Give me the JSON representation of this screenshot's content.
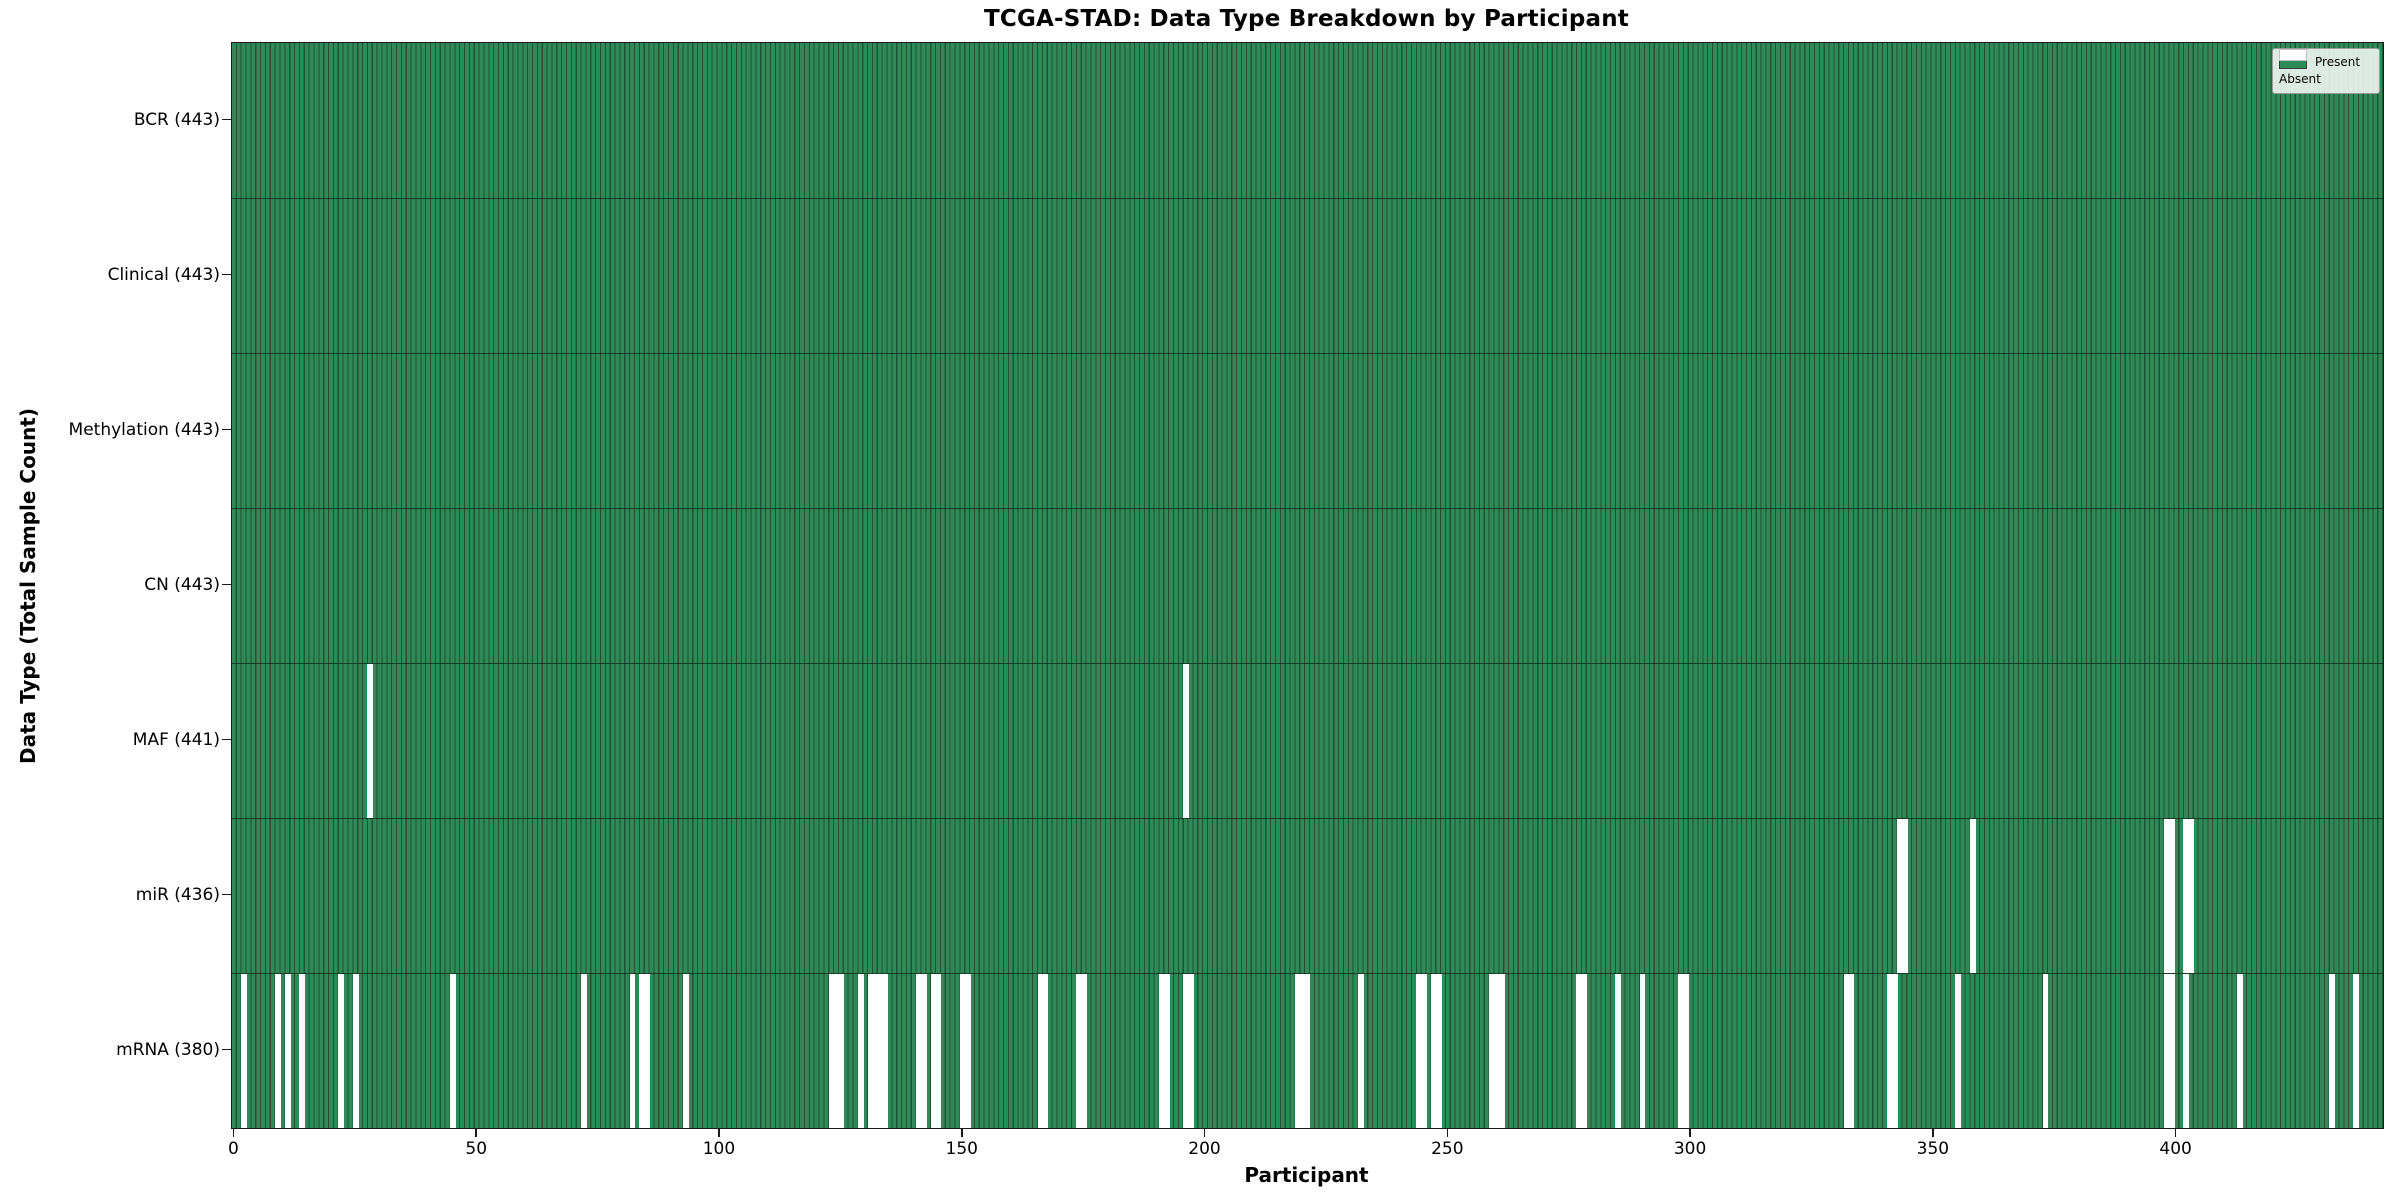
{
  "figure": {
    "title": "TCGA-STAD: Data Type Breakdown by Participant",
    "x_axis_label": "Participant",
    "y_axis_label": "Data Type (Total Sample Count)"
  },
  "legend": {
    "position": "upper-right",
    "items": [
      {
        "label": "Present",
        "color": "#2e8b57"
      },
      {
        "label": "Absent",
        "color": "#ffffff"
      }
    ]
  },
  "chart_data": {
    "type": "heatmap",
    "title": "TCGA-STAD: Data Type Breakdown by Participant",
    "xlabel": "Participant",
    "ylabel": "Data Type (Total Sample Count)",
    "x_ticks": [
      0,
      50,
      100,
      150,
      200,
      250,
      300,
      350,
      400
    ],
    "x_range": [
      0,
      443
    ],
    "n_participants": 443,
    "legend_position": "upper right",
    "grid": false,
    "colors": {
      "present": "#2e8b57",
      "present_edge": "#1d5435",
      "absent": "#ffffff"
    },
    "rows": [
      {
        "name": "BCR",
        "label": "BCR (443)",
        "total": 443,
        "absent_count": 0,
        "absent": []
      },
      {
        "name": "Clinical",
        "label": "Clinical (443)",
        "total": 443,
        "absent_count": 0,
        "absent": []
      },
      {
        "name": "Methylation",
        "label": "Methylation (443)",
        "total": 443,
        "absent_count": 0,
        "absent": []
      },
      {
        "name": "CN",
        "label": "CN (443)",
        "total": 443,
        "absent_count": 0,
        "absent": []
      },
      {
        "name": "MAF",
        "label": "MAF (441)",
        "total": 441,
        "absent_count": 2,
        "absent": [
          28,
          196
        ]
      },
      {
        "name": "miR",
        "label": "miR (436)",
        "total": 436,
        "absent_count": 7,
        "absent": [
          343,
          344,
          358,
          398,
          399,
          402,
          403
        ]
      },
      {
        "name": "mRNA",
        "label": "mRNA (380)",
        "total": 380,
        "absent_count": 63,
        "absent": [
          2,
          9,
          11,
          14,
          22,
          25,
          45,
          72,
          82,
          84,
          85,
          93,
          123,
          124,
          125,
          129,
          131,
          132,
          133,
          134,
          141,
          142,
          144,
          145,
          150,
          151,
          166,
          167,
          174,
          175,
          191,
          192,
          196,
          197,
          219,
          220,
          221,
          232,
          244,
          245,
          247,
          248,
          259,
          260,
          261,
          277,
          278,
          285,
          290,
          298,
          299,
          332,
          333,
          341,
          342,
          355,
          373,
          398,
          399,
          402,
          413,
          432,
          437
        ]
      }
    ]
  }
}
